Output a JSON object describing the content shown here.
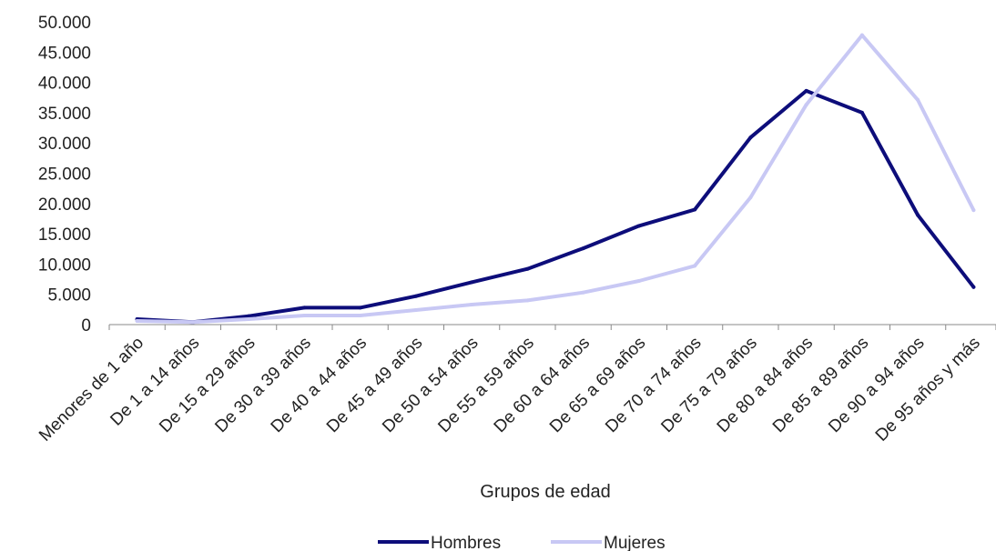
{
  "chart_data": {
    "type": "line",
    "xlabel": "Grupos de edad",
    "ylabel": "",
    "ylim": [
      0,
      50000
    ],
    "ytick_values": [
      0,
      5000,
      10000,
      15000,
      20000,
      25000,
      30000,
      35000,
      40000,
      45000,
      50000
    ],
    "ytick_labels": [
      "0",
      "5.000",
      "10.000",
      "15.000",
      "20.000",
      "25.000",
      "30.000",
      "35.000",
      "40.000",
      "45.000",
      "50.000"
    ],
    "categories": [
      "Menores de 1 año",
      "De 1 a 14 años",
      "De 15 a 29 años",
      "De 30 a 39 años",
      "De 40 a 44 años",
      "De 45 a 49 años",
      "De 50 a 54 años",
      "De 55 a 59 años",
      "De 60 a 64 años",
      "De 65 a 69 años",
      "De 70 a 74 años",
      "De 75 a 79 años",
      "De 80 a 84 años",
      "De 85 a 89 años",
      "De 90 a 94 años",
      "De 95 años y más"
    ],
    "series": [
      {
        "name": "Hombres",
        "color": "#0d0d7a",
        "values": [
          900,
          400,
          1400,
          2800,
          2800,
          4700,
          7000,
          9200,
          12600,
          16300,
          19000,
          30900,
          38600,
          35000,
          18100,
          6200
        ]
      },
      {
        "name": "Mujeres",
        "color": "#c8c8f4",
        "values": [
          600,
          400,
          900,
          1500,
          1500,
          2400,
          3300,
          4000,
          5300,
          7200,
          9700,
          21000,
          36300,
          47800,
          37100,
          18900
        ]
      }
    ],
    "grid": false,
    "legend_position": "bottom-center"
  }
}
